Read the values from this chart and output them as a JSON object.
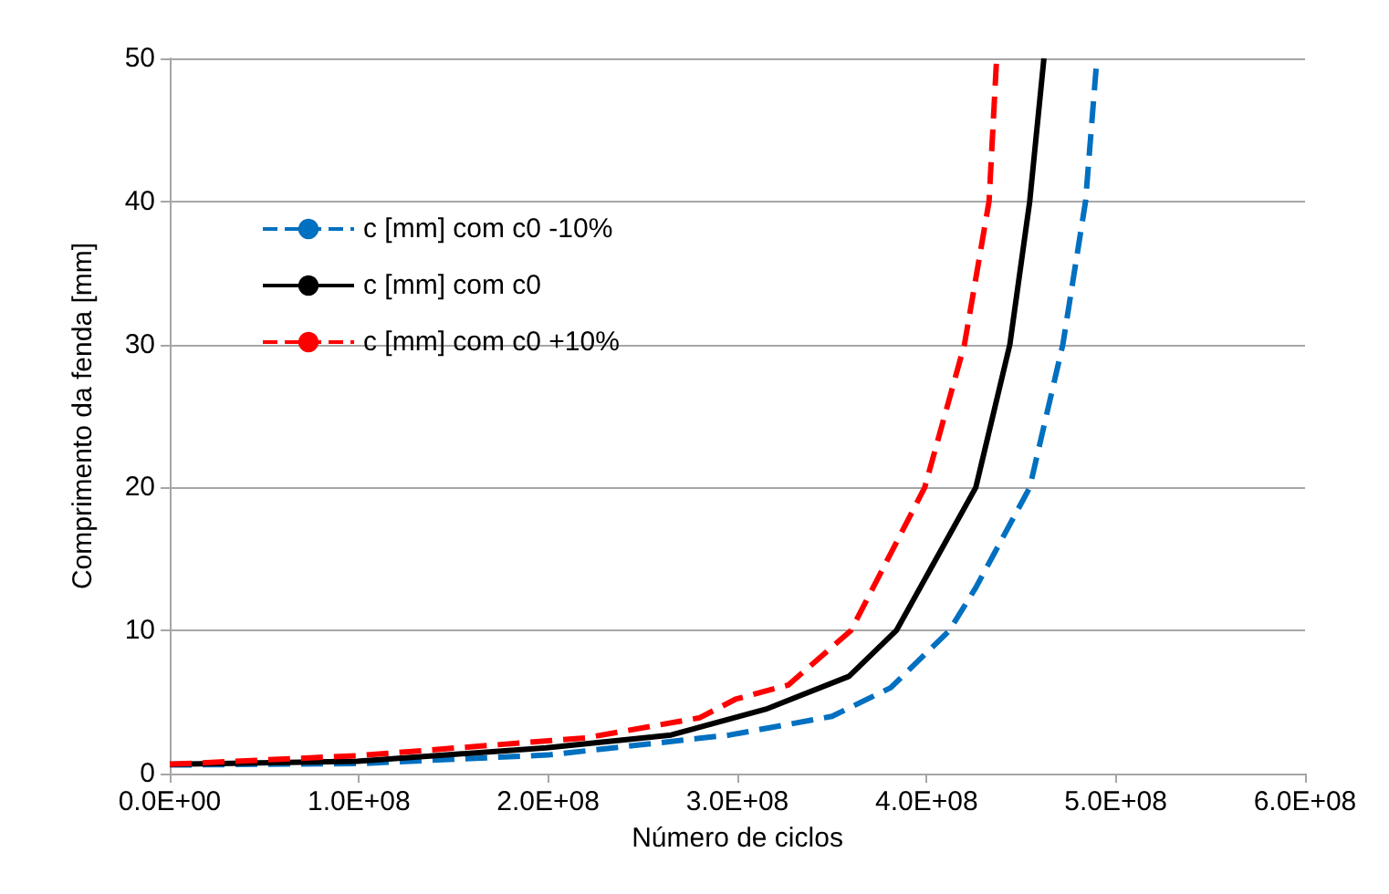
{
  "chart_data": {
    "type": "line",
    "xlabel": "Número de ciclos",
    "ylabel": "Comprimento da fenda [mm]",
    "xlim": [
      0,
      600000000
    ],
    "xticks": [
      {
        "value": 0,
        "label": "0.0E+00"
      },
      {
        "value": 100000000,
        "label": "1.0E+08"
      },
      {
        "value": 200000000,
        "label": "2.0E+08"
      },
      {
        "value": 300000000,
        "label": "3.0E+08"
      },
      {
        "value": 400000000,
        "label": "4.0E+08"
      },
      {
        "value": 500000000,
        "label": "5.0E+08"
      },
      {
        "value": 600000000,
        "label": "6.0E+08"
      }
    ],
    "ylim": [
      0,
      50
    ],
    "yticks": [
      0,
      10,
      20,
      30,
      40,
      50
    ],
    "grid": "y",
    "legend": "top left",
    "marker": "none",
    "series": [
      {
        "name": "c [mm] com c0 -10%",
        "color": "#0070c0",
        "line_style": "dashed",
        "x": [
          0,
          100000000,
          200000000,
          296000000,
          350000000,
          381000000,
          412000000,
          426000000,
          454500000,
          472000000,
          484000000,
          490000000
        ],
        "values": [
          0.6,
          0.7,
          1.3,
          2.7,
          4,
          6,
          10,
          13,
          20,
          30,
          40,
          50
        ]
      },
      {
        "name": "c [mm] com c0",
        "color": "#000000",
        "line_style": "solid",
        "x": [
          0,
          99000000,
          199000000,
          265000000,
          315000000,
          359000000,
          384000000,
          426000000,
          444000000,
          454500000,
          462000000
        ],
        "values": [
          0.65,
          0.86,
          1.8,
          2.7,
          4.5,
          6.8,
          10,
          20,
          30,
          40,
          50
        ]
      },
      {
        "name": "c [mm] com c0 +10%",
        "color": "#ff0000",
        "line_style": "dashed",
        "x": [
          0,
          100000000,
          220000000,
          280000000,
          299000000,
          327000000,
          360000000,
          399000000,
          420000000,
          433000000,
          437000000
        ],
        "values": [
          0.65,
          1.26,
          2.5,
          3.9,
          5.2,
          6.2,
          10,
          20,
          30,
          40,
          50
        ]
      }
    ]
  }
}
